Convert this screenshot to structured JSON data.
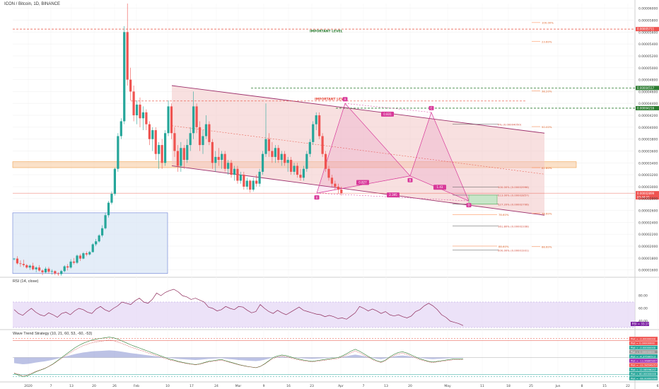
{
  "title": "ICON / Bitcoin, 1D, BINANCE",
  "colors": {
    "up": "#26a69a",
    "down": "#ef5350",
    "channel_fill": "#f3c6c6",
    "channel_line": "#9c2f6b",
    "rsi_line": "#8e2b5a",
    "rsi_band": "#e4d6f5",
    "pattern": "#d8399a",
    "support_zone": "#f7c99a",
    "range_box": "#d9e6f5",
    "range_border": "#6a7fd6",
    "fib_red": "#e74c3c",
    "fib_orange": "#ff7f3f",
    "green_level": "#2e7d32"
  },
  "main": {
    "annotations": [
      {
        "text": "IMPORTANT LEVEL",
        "price": 5.58e-05,
        "color": "green"
      },
      {
        "text": "IMPORTANT LEVEL",
        "price": 4.44e-05,
        "color": "red"
      }
    ],
    "fib_labels": [
      {
        "text": "0% (0.00004050)",
        "price": 4.05e-05
      },
      {
        "text": "100.00% (0.00002996)",
        "price": 2.996e-05
      },
      {
        "text": "113.00% (0.00002857)",
        "price": 2.857e-05
      },
      {
        "text": "127.20% (0.00002706)",
        "price": 2.706e-05
      },
      {
        "text": "161.80% (0.00002338)",
        "price": 2.338e-05
      },
      {
        "text": "200.00% (0.00001931)",
        "price": 1.931e-05
      }
    ],
    "retrace_labels": [
      {
        "text": "23.60%",
        "price": 5.44e-05
      },
      {
        "text": "38.20%",
        "price": 4.61e-05
      },
      {
        "text": "50.00%",
        "price": 4.01e-05
      },
      {
        "text": "61.80%",
        "price": 3.32e-05
      },
      {
        "text": "88.60%",
        "price": 1.99e-05
      },
      {
        "text": "78.60%",
        "price": 2.55e-05
      },
      {
        "text": "100.00%",
        "price": 5.76e-05
      },
      {
        "text": "78.60%",
        "price": 2.53e-05
      },
      {
        "text": "88.60%",
        "price": 2e-05
      }
    ],
    "pattern_points": [
      {
        "label": "X",
        "date": "2020-03-21",
        "price": 2.89e-05
      },
      {
        "label": "A",
        "date": "2020-04-01",
        "price": 4.4e-05
      },
      {
        "label": "B",
        "date": "2020-04-22",
        "price": 3.18e-05
      },
      {
        "label": "C",
        "date": "2020-04-28",
        "price": 4.25e-05
      },
      {
        "label": "D",
        "date": "2020-05-04",
        "price": 2.76e-05
      }
    ],
    "ratio_labels": [
      {
        "text": "0.831",
        "price": 4.22e-05
      },
      {
        "text": "0.827",
        "price": 3.07e-05
      },
      {
        "text": "2.395",
        "price": 2.86e-05
      },
      {
        "text": "1.43",
        "price": 2.99e-05
      }
    ],
    "price_tags": [
      {
        "text": "0.00005711",
        "price": 5.65e-05,
        "color": "#ef5350"
      },
      {
        "text": "0.00004517",
        "price": 4.66e-05,
        "color": "#2e7d32"
      },
      {
        "text": "0.00004216",
        "price": 4.32e-05,
        "color": "#2e7d32"
      },
      {
        "text": "0.00002899",
        "price": 2.89e-05,
        "color": "#ef5350"
      },
      {
        "text": "03:44:21",
        "price": 2.82e-05,
        "color": "#ef5350"
      }
    ]
  },
  "rsi": {
    "title": "RSI (14, close)",
    "levels": [
      "80.00",
      "60.00",
      "40.00"
    ],
    "last_label": "RSI = 33.17",
    "values": [
      58,
      52,
      49,
      55,
      60,
      54,
      50,
      48,
      53,
      50,
      46,
      52,
      54,
      50,
      56,
      60,
      58,
      54,
      52,
      59,
      63,
      58,
      55,
      60,
      64,
      70,
      68,
      66,
      72,
      76,
      70,
      68,
      74,
      84,
      80,
      85,
      88,
      90,
      86,
      80,
      78,
      74,
      76,
      73,
      70,
      62,
      60,
      56,
      58,
      63,
      60,
      58,
      63,
      62,
      57,
      53,
      55,
      66,
      60,
      55,
      52,
      57,
      53,
      50,
      54,
      58,
      62,
      57,
      55,
      53,
      51,
      50,
      47,
      49,
      47,
      44,
      45,
      43,
      48,
      53,
      63,
      60,
      56,
      59,
      56,
      52,
      55,
      50,
      48,
      50,
      47,
      45,
      48,
      55,
      58,
      64,
      68,
      64,
      58,
      50,
      46,
      40,
      38,
      36,
      33
    ],
    "ticks": [
      {
        "label": "80.00",
        "value": 80
      },
      {
        "label": "60.00",
        "value": 60
      },
      {
        "label": "40.00",
        "value": 40
      }
    ]
  },
  "wavetrend": {
    "title": "Wave Trend Strategy (10, 21, 60, 53, -60, -53)",
    "tags": [
      {
        "text": "Plot = -0.00000000",
        "color": "#ef5350"
      },
      {
        "text": "Plot = 0.00000000",
        "color": "#ef5350"
      },
      {
        "text": "Plot = -0.00000000",
        "color": "#26a69a"
      },
      {
        "text": "Plot = 0.00000000",
        "color": "#999999"
      },
      {
        "text": "Plot = -4.37590513",
        "color": "#26a69a"
      },
      {
        "text": "Plot = -13.96865897",
        "color": "#9c27b0"
      },
      {
        "text": "Plot = -22.58596257",
        "color": "#ef5350"
      },
      {
        "text": "Plot = 12.58596257",
        "color": "#26a69a"
      },
      {
        "text": "Plot = 60.00000000",
        "color": "#26a69a"
      },
      {
        "text": "Plot = -60.00000000",
        "color": "#26a69a"
      }
    ],
    "wt1": [
      -50,
      -55,
      -60,
      -58,
      -52,
      -45,
      -40,
      -35,
      -28,
      -20,
      -10,
      0,
      10,
      20,
      30,
      38,
      45,
      50,
      55,
      58,
      60,
      62,
      64,
      62,
      58,
      52,
      46,
      40,
      35,
      30,
      25,
      20,
      15,
      10,
      5,
      0,
      -5,
      -8,
      -12,
      -15,
      -18,
      -20,
      -22,
      -20,
      -16,
      -12,
      -10,
      -8,
      -6,
      -10,
      -14,
      -18,
      -22,
      -25,
      -28,
      -30,
      -32,
      -28,
      -20,
      -10,
      0,
      5,
      8,
      6,
      2,
      -2,
      -5,
      -8,
      -10,
      -12,
      -10,
      -8,
      -6,
      -4,
      -2,
      0,
      5,
      12,
      20,
      26,
      20,
      12,
      4,
      -4,
      -10,
      -14,
      -8,
      2,
      10,
      16,
      18,
      14,
      8,
      2,
      -4,
      -8,
      -12,
      -14,
      -12,
      -10,
      -8,
      -6,
      -4,
      -4,
      -4
    ],
    "levels": [
      60,
      53,
      -53,
      -60
    ]
  },
  "axes": {
    "price_ticks": [
      "0.00006000",
      "0.00005800",
      "0.00005600",
      "0.00005400",
      "0.00005200",
      "0.00005000",
      "0.00004800",
      "0.00004600",
      "0.00004400",
      "0.00004200",
      "0.00004000",
      "0.00003800",
      "0.00003600",
      "0.00003400",
      "0.00003200",
      "0.00003000",
      "0.00002800",
      "0.00002600",
      "0.00002400",
      "0.00002200",
      "0.00002000",
      "0.00001800",
      "0.00001600"
    ],
    "time_ticks": [
      "2020",
      "7",
      "13",
      "20",
      "26",
      "Feb",
      "10",
      "17",
      "24",
      "Mar",
      "9",
      "16",
      "23",
      "Apr",
      "7",
      "13",
      "20",
      "May",
      "11",
      "18",
      "25",
      "Jun",
      "8",
      "15",
      "22",
      "6"
    ]
  },
  "chart_data": {
    "type": "candlestick",
    "title": "ICON / Bitcoin, 1D, BINANCE",
    "y_unit": "BTC",
    "ylim": [
      1.5e-05,
      6.08e-05
    ],
    "grid": true,
    "candles_note_fields": [
      "open",
      "high",
      "low",
      "close"
    ],
    "candles": [
      [
        1.78e-05,
        1.8e-05,
        1.76e-05,
        1.79e-05
      ],
      [
        1.79e-05,
        1.83e-05,
        1.69e-05,
        1.71e-05
      ],
      [
        1.71e-05,
        1.76e-05,
        1.65e-05,
        1.7e-05
      ],
      [
        1.7e-05,
        1.77e-05,
        1.65e-05,
        1.68e-05
      ],
      [
        1.68e-05,
        1.7e-05,
        1.62e-05,
        1.64e-05
      ],
      [
        1.64e-05,
        1.69e-05,
        1.6e-05,
        1.67e-05
      ],
      [
        1.67e-05,
        1.72e-05,
        1.59e-05,
        1.61e-05
      ],
      [
        1.61e-05,
        1.66e-05,
        1.56e-05,
        1.64e-05
      ],
      [
        1.64e-05,
        1.68e-05,
        1.57e-05,
        1.59e-05
      ],
      [
        1.59e-05,
        1.61e-05,
        1.51e-05,
        1.56e-05
      ],
      [
        1.56e-05,
        1.65e-05,
        1.54e-05,
        1.62e-05
      ],
      [
        1.62e-05,
        1.65e-05,
        1.54e-05,
        1.57e-05
      ],
      [
        1.57e-05,
        1.61e-05,
        1.52e-05,
        1.58e-05
      ],
      [
        1.58e-05,
        1.59e-05,
        1.51e-05,
        1.54e-05
      ],
      [
        1.54e-05,
        1.56e-05,
        1.5e-05,
        1.53e-05
      ],
      [
        1.53e-05,
        1.6e-05,
        1.5e-05,
        1.58e-05
      ],
      [
        1.58e-05,
        1.68e-05,
        1.56e-05,
        1.66e-05
      ],
      [
        1.66e-05,
        1.7e-05,
        1.59e-05,
        1.64e-05
      ],
      [
        1.64e-05,
        1.78e-05,
        1.62e-05,
        1.74e-05
      ],
      [
        1.74e-05,
        1.8e-05,
        1.69e-05,
        1.72e-05
      ],
      [
        1.72e-05,
        1.86e-05,
        1.7e-05,
        1.84e-05
      ],
      [
        1.84e-05,
        1.87e-05,
        1.75e-05,
        1.79e-05
      ],
      [
        1.79e-05,
        1.9e-05,
        1.78e-05,
        1.88e-05
      ],
      [
        1.88e-05,
        1.91e-05,
        1.83e-05,
        1.86e-05
      ],
      [
        1.86e-05,
        1.92e-05,
        1.84e-05,
        1.9e-05
      ],
      [
        1.9e-05,
        2.05e-05,
        1.89e-05,
        2.03e-05
      ],
      [
        2.03e-05,
        2.12e-05,
        2e-05,
        2.08e-05
      ],
      [
        2.08e-05,
        2.2e-05,
        2.06e-05,
        2.18e-05
      ],
      [
        2.18e-05,
        2.35e-05,
        2.15e-05,
        2.3e-05
      ],
      [
        2.3e-05,
        2.56e-05,
        2.28e-05,
        2.52e-05
      ],
      [
        2.52e-05,
        2.76e-05,
        2.48e-05,
        2.73e-05
      ],
      [
        2.73e-05,
        2.92e-05,
        2.7e-05,
        2.88e-05
      ],
      [
        2.88e-05,
        3.32e-05,
        2.85e-05,
        3.3e-05
      ],
      [
        3.3e-05,
        3.9e-05,
        3.25e-05,
        3.85e-05
      ],
      [
        3.85e-05,
        4.15e-05,
        3.8e-05,
        4.1e-05
      ],
      [
        4.1e-05,
        5.7e-05,
        4.05e-05,
        5.6e-05
      ],
      [
        5.6e-05,
        6.08e-05,
        4.7e-05,
        4.8e-05
      ],
      [
        4.8e-05,
        5e-05,
        4.45e-05,
        4.6e-05
      ],
      [
        4.6e-05,
        4.7e-05,
        4.1e-05,
        4.2e-05
      ],
      [
        4.2e-05,
        4.45e-05,
        4.05e-05,
        4.38e-05
      ],
      [
        4.38e-05,
        4.5e-05,
        4e-05,
        4.15e-05
      ],
      [
        4.15e-05,
        4.35e-05,
        3.95e-05,
        4.25e-05
      ],
      [
        4.25e-05,
        4.3e-05,
        3.95e-05,
        4.05e-05
      ],
      [
        4.05e-05,
        4.1e-05,
        3.7e-05,
        3.8e-05
      ],
      [
        3.8e-05,
        4e-05,
        3.6e-05,
        3.95e-05
      ],
      [
        3.95e-05,
        4e-05,
        3.45e-05,
        3.55e-05
      ],
      [
        3.55e-05,
        3.75e-05,
        3.3e-05,
        3.7e-05
      ],
      [
        3.7e-05,
        3.8e-05,
        3.3e-05,
        3.4e-05
      ],
      [
        3.4e-05,
        3.95e-05,
        3.35e-05,
        3.9e-05
      ],
      [
        3.9e-05,
        4.45e-05,
        3.85e-05,
        4.35e-05
      ],
      [
        4.35e-05,
        4.4e-05,
        3.8e-05,
        3.9e-05
      ],
      [
        3.9e-05,
        4e-05,
        3.5e-05,
        3.6e-05
      ],
      [
        3.6e-05,
        3.7e-05,
        3.25e-05,
        3.35e-05
      ],
      [
        3.35e-05,
        3.75e-05,
        3.25e-05,
        3.65e-05
      ],
      [
        3.65e-05,
        3.7e-05,
        3.3e-05,
        3.45e-05
      ],
      [
        3.45e-05,
        3.8e-05,
        3.4e-05,
        3.7e-05
      ],
      [
        3.7e-05,
        4e-05,
        3.6e-05,
        3.9e-05
      ],
      [
        3.9e-05,
        4.6e-05,
        3.8e-05,
        4.35e-05
      ],
      [
        4.35e-05,
        4.4e-05,
        3.9e-05,
        4e-05
      ],
      [
        4e-05,
        4.1e-05,
        3.6e-05,
        3.7e-05
      ],
      [
        3.7e-05,
        3.95e-05,
        3.55e-05,
        3.85e-05
      ],
      [
        3.85e-05,
        4.2e-05,
        3.8e-05,
        4.05e-05
      ],
      [
        4.05e-05,
        4.1e-05,
        3.7e-05,
        3.75e-05
      ],
      [
        3.75e-05,
        3.8e-05,
        3.3e-05,
        3.4e-05
      ],
      [
        3.4e-05,
        3.6e-05,
        3.25e-05,
        3.5e-05
      ],
      [
        3.5e-05,
        3.65e-05,
        3.35e-05,
        3.45e-05
      ],
      [
        3.45e-05,
        3.6e-05,
        3.3e-05,
        3.55e-05
      ],
      [
        3.55e-05,
        3.6e-05,
        3.25e-05,
        3.3e-05
      ],
      [
        3.3e-05,
        3.45e-05,
        3.2e-05,
        3.4e-05
      ],
      [
        3.4e-05,
        3.45e-05,
        3.15e-05,
        3.2e-05
      ],
      [
        3.2e-05,
        3.35e-05,
        3.1e-05,
        3.3e-05
      ],
      [
        3.3e-05,
        3.35e-05,
        3.05e-05,
        3.1e-05
      ],
      [
        3.1e-05,
        3.25e-05,
        3.05e-05,
        3.2e-05
      ],
      [
        3.2e-05,
        3.25e-05,
        2.95e-05,
        3e-05
      ],
      [
        3e-05,
        3.15e-05,
        2.95e-05,
        3.1e-05
      ],
      [
        3.1e-05,
        3.12e-05,
        2.9e-05,
        2.95e-05
      ],
      [
        2.95e-05,
        3.15e-05,
        2.92e-05,
        3.1e-05
      ],
      [
        3.1e-05,
        3.2e-05,
        3e-05,
        3.05e-05
      ],
      [
        3.05e-05,
        3.3e-05,
        3e-05,
        3.25e-05
      ],
      [
        3.25e-05,
        3.6e-05,
        3.2e-05,
        3.55e-05
      ],
      [
        3.55e-05,
        4.4e-05,
        3.5e-05,
        3.8e-05
      ],
      [
        3.8e-05,
        3.9e-05,
        3.5e-05,
        3.6e-05
      ],
      [
        3.6e-05,
        3.75e-05,
        3.4e-05,
        3.5e-05
      ],
      [
        3.5e-05,
        3.7e-05,
        3.4e-05,
        3.65e-05
      ],
      [
        3.65e-05,
        3.7e-05,
        3.4e-05,
        3.45e-05
      ],
      [
        3.45e-05,
        3.6e-05,
        3.35e-05,
        3.55e-05
      ],
      [
        3.55e-05,
        3.6e-05,
        3.35e-05,
        3.4e-05
      ],
      [
        3.4e-05,
        3.5e-05,
        3.25e-05,
        3.45e-05
      ],
      [
        3.45e-05,
        3.5e-05,
        3.2e-05,
        3.25e-05
      ],
      [
        3.25e-05,
        3.4e-05,
        3.2e-05,
        3.35e-05
      ],
      [
        3.35e-05,
        3.4e-05,
        3.15e-05,
        3.2e-05
      ],
      [
        3.2e-05,
        3.3e-05,
        3.1e-05,
        3.15e-05
      ],
      [
        3.15e-05,
        3.35e-05,
        3.1e-05,
        3.3e-05
      ],
      [
        3.3e-05,
        3.6e-05,
        3.25e-05,
        3.55e-05
      ],
      [
        3.55e-05,
        3.8e-05,
        3.5e-05,
        3.75e-05
      ],
      [
        3.75e-05,
        4.1e-05,
        3.7e-05,
        4.05e-05
      ],
      [
        4.05e-05,
        4.25e-05,
        3.95e-05,
        4.2e-05
      ],
      [
        4.2e-05,
        4.25e-05,
        3.8e-05,
        3.85e-05
      ],
      [
        3.85e-05,
        3.9e-05,
        3.5e-05,
        3.55e-05
      ],
      [
        3.55e-05,
        3.6e-05,
        3.25e-05,
        3.3e-05
      ],
      [
        3.3e-05,
        3.35e-05,
        3.1e-05,
        3.15e-05
      ],
      [
        3.15e-05,
        3.2e-05,
        3e-05,
        3.05e-05
      ],
      [
        3.05e-05,
        3.1e-05,
        2.95e-05,
        3e-05
      ],
      [
        3e-05,
        3.05e-05,
        2.88e-05,
        2.95e-05
      ],
      [
        2.95e-05,
        3e-05,
        2.85e-05,
        2.89e-05
      ]
    ],
    "overlays": {
      "descending_channel": {
        "upper": [
          [
            4.7e-05,
            3.9e-05
          ]
        ],
        "lower": [
          [
            3.35e-05,
            2.52e-05
          ]
        ]
      },
      "range_box": {
        "top": 2.56e-05,
        "bottom": 1.54e-05
      },
      "support_zone": {
        "top": 3.42e-05,
        "bottom": 3.32e-05
      }
    }
  }
}
